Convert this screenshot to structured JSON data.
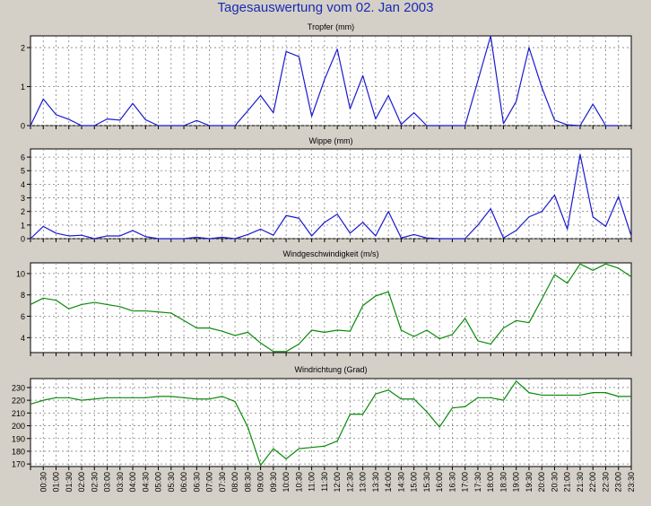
{
  "page": {
    "title": "Tagesauswertung vom 02. Jan 2003"
  },
  "colors": {
    "background": "#d4d0c8",
    "plot_background": "#ffffff",
    "grid": "#808080",
    "blue_series": "#1a1ad0",
    "green_series": "#0a8a0a",
    "title_text": "#1c2ab0"
  },
  "chart_data": [
    {
      "type": "line",
      "title": "Tropfer (mm)",
      "color": "#1a1ad0",
      "ylim": [
        0,
        2.3
      ],
      "yticks": [
        0,
        1,
        2
      ],
      "grid": true,
      "x": [
        "00:00",
        "00:30",
        "01:00",
        "01:30",
        "02:00",
        "02:30",
        "03:00",
        "03:30",
        "04:00",
        "04:30",
        "05:00",
        "05:30",
        "06:00",
        "06:30",
        "07:00",
        "07:30",
        "08:00",
        "08:30",
        "09:00",
        "09:30",
        "10:00",
        "10:30",
        "11:00",
        "11:30",
        "12:00",
        "12:30",
        "13:00",
        "13:30",
        "14:00",
        "14:30",
        "15:00",
        "15:30",
        "16:00",
        "16:30",
        "17:00",
        "17:30",
        "18:00",
        "18:30",
        "19:00",
        "19:30",
        "20:00",
        "20:30",
        "21:00",
        "21:30",
        "22:00",
        "22:30",
        "23:00",
        "23:30"
      ],
      "values": [
        0,
        0.68,
        0.28,
        0.16,
        0,
        0,
        0.17,
        0.14,
        0.57,
        0.15,
        0,
        0,
        0,
        0.13,
        0,
        0,
        0,
        0.38,
        0.77,
        0.33,
        1.9,
        1.77,
        0.24,
        1.18,
        1.96,
        0.43,
        1.28,
        0.17,
        0.77,
        0.03,
        0.33,
        0,
        0,
        0,
        0,
        1.15,
        2.3,
        0.05,
        0.62,
        2.0,
        0.98,
        0.14,
        0.02,
        0,
        0.55,
        0,
        0,
        null
      ]
    },
    {
      "type": "line",
      "title": "Wippe (mm)",
      "color": "#1a1ad0",
      "ylim": [
        0,
        6.6
      ],
      "yticks": [
        0,
        1,
        2,
        3,
        4,
        5,
        6
      ],
      "grid": true,
      "x": [
        "00:00",
        "00:30",
        "01:00",
        "01:30",
        "02:00",
        "02:30",
        "03:00",
        "03:30",
        "04:00",
        "04:30",
        "05:00",
        "05:30",
        "06:00",
        "06:30",
        "07:00",
        "07:30",
        "08:00",
        "08:30",
        "09:00",
        "09:30",
        "10:00",
        "10:30",
        "11:00",
        "11:30",
        "12:00",
        "12:30",
        "13:00",
        "13:30",
        "14:00",
        "14:30",
        "15:00",
        "15:30",
        "16:00",
        "16:30",
        "17:00",
        "17:30",
        "18:00",
        "18:30",
        "19:00",
        "19:30",
        "20:00",
        "20:30",
        "21:00",
        "21:30",
        "22:00",
        "22:30",
        "23:00",
        "23:30"
      ],
      "values": [
        0,
        0.9,
        0.4,
        0.2,
        0.25,
        0,
        0.2,
        0.2,
        0.6,
        0.15,
        0,
        0,
        0,
        0.1,
        0,
        0.1,
        0,
        0.3,
        0.7,
        0.25,
        1.7,
        1.5,
        0.2,
        1.2,
        1.8,
        0.4,
        1.2,
        0.2,
        2.0,
        0.05,
        0.3,
        0.05,
        0,
        0,
        0,
        1.0,
        2.2,
        0.05,
        0.6,
        1.6,
        2.0,
        3.2,
        0.7,
        6.2,
        1.6,
        0.9,
        3.1,
        0.2
      ]
    },
    {
      "type": "line",
      "title": "Windgeschwindigkeit (m/s)",
      "color": "#0a8a0a",
      "ylim": [
        2.6,
        11.0
      ],
      "yticks": [
        4,
        6,
        8,
        10
      ],
      "grid": true,
      "x": [
        "00:00",
        "00:30",
        "01:00",
        "01:30",
        "02:00",
        "02:30",
        "03:00",
        "03:30",
        "04:00",
        "04:30",
        "05:00",
        "05:30",
        "06:00",
        "06:30",
        "07:00",
        "07:30",
        "08:00",
        "08:30",
        "09:00",
        "09:30",
        "10:00",
        "10:30",
        "11:00",
        "11:30",
        "12:00",
        "12:30",
        "13:00",
        "13:30",
        "14:00",
        "14:30",
        "15:00",
        "15:30",
        "16:00",
        "16:30",
        "17:00",
        "17:30",
        "18:00",
        "18:30",
        "19:00",
        "19:30",
        "20:00",
        "20:30",
        "21:00",
        "21:30",
        "22:00",
        "22:30",
        "23:00",
        "23:30"
      ],
      "values": [
        7.1,
        7.7,
        7.5,
        6.7,
        7.1,
        7.3,
        7.1,
        6.9,
        6.5,
        6.5,
        6.4,
        6.3,
        5.6,
        4.9,
        4.9,
        4.6,
        4.2,
        4.5,
        3.5,
        2.7,
        2.7,
        3.4,
        4.7,
        4.5,
        4.7,
        4.6,
        7.0,
        7.9,
        8.3,
        4.7,
        4.1,
        4.7,
        3.9,
        4.3,
        5.8,
        3.7,
        3.4,
        4.9,
        5.6,
        5.4,
        7.6,
        9.9,
        9.1,
        10.9,
        10.3,
        10.9,
        10.5,
        9.7
      ]
    },
    {
      "type": "line",
      "title": "Windrichtung (Grad)",
      "color": "#0a8a0a",
      "ylim": [
        168,
        237
      ],
      "yticks": [
        170,
        180,
        190,
        200,
        210,
        220,
        230
      ],
      "grid": true,
      "x": [
        "00:00",
        "00:30",
        "01:00",
        "01:30",
        "02:00",
        "02:30",
        "03:00",
        "03:30",
        "04:00",
        "04:30",
        "05:00",
        "05:30",
        "06:00",
        "06:30",
        "07:00",
        "07:30",
        "08:00",
        "08:30",
        "09:00",
        "09:30",
        "10:00",
        "10:30",
        "11:00",
        "11:30",
        "12:00",
        "12:30",
        "13:00",
        "13:30",
        "14:00",
        "14:30",
        "15:00",
        "15:30",
        "16:00",
        "16:30",
        "17:00",
        "17:30",
        "18:00",
        "18:30",
        "19:00",
        "19:30",
        "20:00",
        "20:30",
        "21:00",
        "21:30",
        "22:00",
        "22:30",
        "23:00",
        "23:30"
      ],
      "values": [
        217,
        220,
        222,
        222,
        220,
        221,
        222,
        222,
        222,
        222,
        223,
        223,
        222,
        221,
        221,
        223,
        219,
        199,
        169,
        182,
        174,
        182,
        183,
        184,
        188,
        209,
        209,
        225,
        228,
        221,
        221,
        211,
        199,
        214,
        215,
        222,
        222,
        220,
        235,
        226,
        224,
        224,
        224,
        224,
        226,
        226,
        223,
        223
      ]
    }
  ],
  "x_tick_labels": [
    "00:30",
    "01:00",
    "01:30",
    "02:00",
    "02:30",
    "03:00",
    "03:30",
    "04:00",
    "04:30",
    "05:00",
    "05:30",
    "06:00",
    "06:30",
    "07:00",
    "07:30",
    "08:00",
    "08:30",
    "09:00",
    "09:30",
    "10:00",
    "10:30",
    "11:00",
    "11:30",
    "12:00",
    "12:30",
    "13:00",
    "13:30",
    "14:00",
    "14:30",
    "15:00",
    "15:30",
    "16:00",
    "16:30",
    "17:00",
    "17:30",
    "18:00",
    "18:30",
    "19:00",
    "19:30",
    "20:00",
    "20:30",
    "21:00",
    "21:30",
    "22:00",
    "22:30",
    "23:00",
    "23:30"
  ]
}
